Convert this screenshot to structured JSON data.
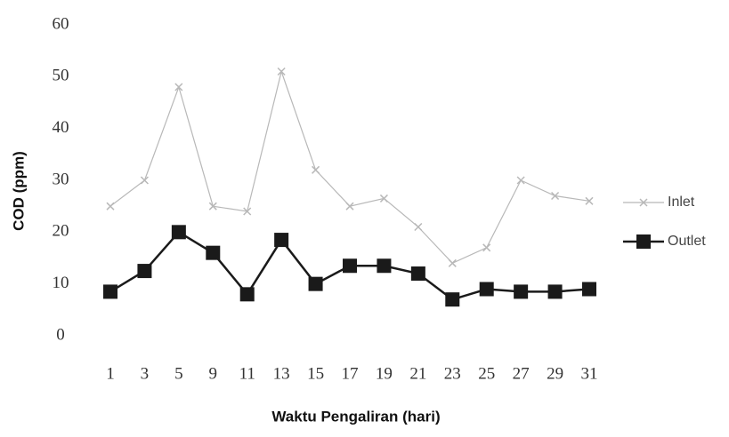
{
  "chart_data": {
    "type": "line",
    "x_label": "Waktu Pengaliran (hari)",
    "y_label": "COD (ppm)",
    "categories": [
      "1",
      "3",
      "5",
      "9",
      "11",
      "13",
      "15",
      "17",
      "19",
      "21",
      "23",
      "25",
      "27",
      "29",
      "31"
    ],
    "series": [
      {
        "name": "Inlet",
        "color": "#b8b8b8",
        "marker": "x",
        "values": [
          25,
          30,
          48,
          25,
          24,
          51,
          32,
          25,
          26.5,
          21,
          14,
          17,
          30,
          27,
          26
        ]
      },
      {
        "name": "Outlet",
        "color": "#1a1a1a",
        "marker": "square",
        "values": [
          8.5,
          12.5,
          20,
          16,
          8,
          18.5,
          10,
          13.5,
          13.5,
          12,
          7,
          9,
          8.5,
          8.5,
          9
        ]
      }
    ],
    "ylim": [
      0,
      60
    ],
    "yticks": [
      0,
      10,
      20,
      30,
      40,
      50,
      60
    ],
    "grid": false,
    "legend": "right"
  }
}
